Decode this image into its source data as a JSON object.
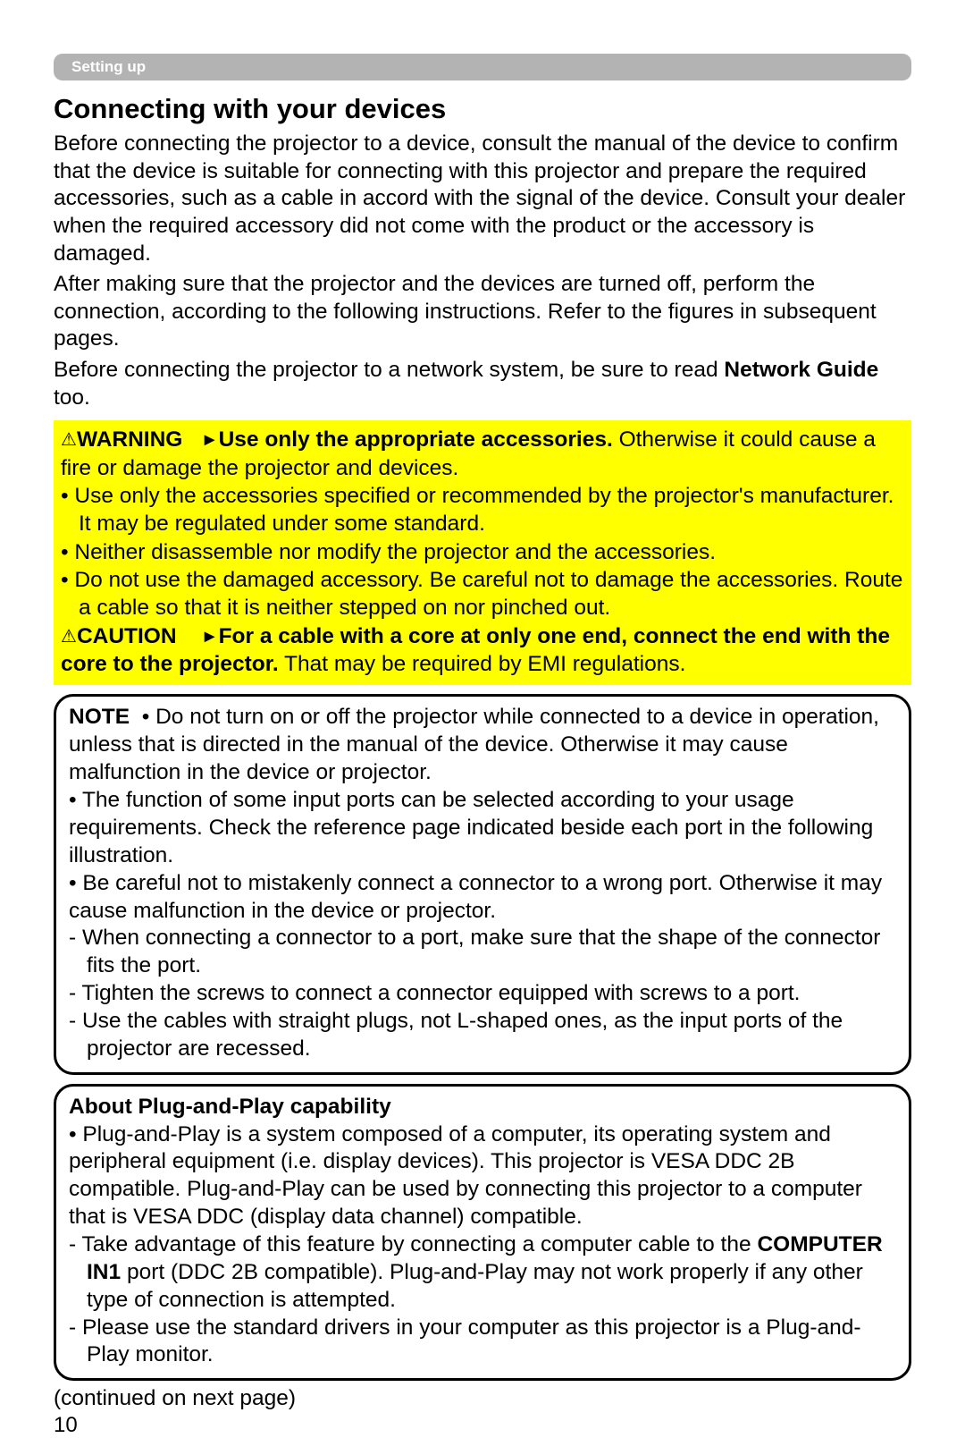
{
  "section_header": "Setting up",
  "heading": "Connecting with your devices",
  "intro": {
    "p1": "Before connecting the projector to a device, consult the manual of the device to confirm that the device is suitable for connecting with this projector and prepare the required accessories, such as a cable in accord with the signal of the device. Consult your dealer when the required accessory did not come with the product or the accessory is damaged.",
    "p2": "After making sure that the projector and the devices are turned off, perform the connection, according to the following instructions. Refer to the figures in subsequent pages.",
    "p3_pre": "Before connecting the projector to a network system, be sure to read ",
    "p3_bold": "Network Guide",
    "p3_post": " too."
  },
  "warning_box": {
    "warn_label": "WARNING",
    "warn_bold": "Use only the appropriate accessories.",
    "warn_rest": " Otherwise it could cause a fire or damage the projector and devices.",
    "bullets": [
      "• Use only the accessories specified or recommended by the projector's manufacturer. It may be regulated under some standard.",
      "• Neither disassemble nor modify the projector and the accessories.",
      "• Do not use the damaged accessory. Be careful not to damage the accessories. Route a cable so that it is neither stepped on nor pinched out."
    ],
    "caution_label": "CAUTION",
    "caution_bold": "For a cable with a core at only one end, connect the end with the core to the projector.",
    "caution_rest": " That may be required by EMI regulations."
  },
  "note_box": {
    "label": "NOTE",
    "p1": "• Do not turn on or off the projector while connected to a device in operation, unless that is directed in the manual of the device. Otherwise it may cause malfunction in the device or projector.",
    "p2": "• The function of some input ports can be selected according to your usage requirements. Check the reference page indicated beside each port in the following illustration.",
    "p3": "• Be careful not to mistakenly connect a connector to a wrong port. Otherwise it may cause malfunction in the device or projector.",
    "dashes": [
      "- When connecting a connector to a port, make sure that the shape of the connector fits the port.",
      "- Tighten the screws to connect a connector equipped with screws to a port.",
      "- Use the cables with straight plugs, not L-shaped ones, as the input ports of the projector are recessed."
    ]
  },
  "pnp_box": {
    "title": "About Plug-and-Play capability",
    "p1": "• Plug-and-Play is a system composed of a computer, its operating system and peripheral equipment (i.e. display devices). This projector is VESA DDC 2B compatible. Plug-and-Play can be used by connecting this projector to a computer that is VESA DDC (display data channel) compatible.",
    "d1_pre": "- Take advantage of this feature by connecting a computer cable to the ",
    "d1_bold": "COMPUTER IN1",
    "d1_post": " port (DDC 2B compatible). Plug-and-Play may not work properly if any other type of connection is attempted.",
    "d2": "- Please use the standard drivers in your computer as this projector is a Plug-and-Play monitor."
  },
  "continued": "(continued on next page)",
  "page_number": "10",
  "colors": {
    "header_bg": "#b3b3b3",
    "header_text": "#ffffff",
    "warning_bg": "#ffff00",
    "text": "#000000",
    "border": "#000000"
  }
}
